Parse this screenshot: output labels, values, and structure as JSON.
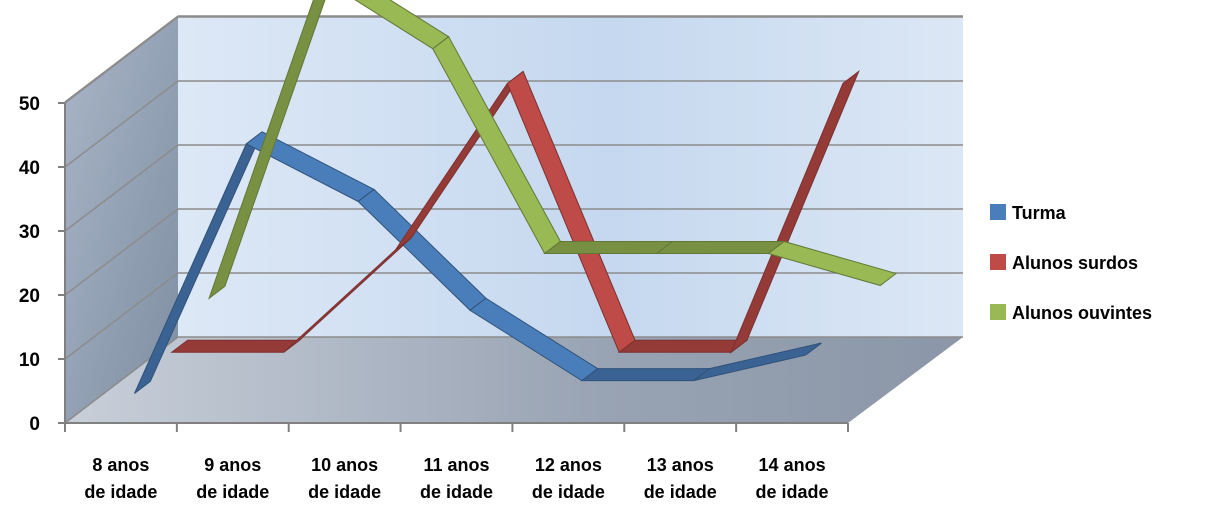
{
  "chart_data": {
    "type": "line",
    "title": "",
    "xlabel": "",
    "ylabel": "",
    "ylim": [
      0,
      50
    ],
    "y_ticks": [
      "0",
      "10",
      "20",
      "30",
      "40",
      "50"
    ],
    "categories": [
      [
        "8 anos",
        "de idade"
      ],
      [
        "9 anos",
        "de idade"
      ],
      [
        "10 anos",
        "de idade"
      ],
      [
        "11 anos",
        "de idade"
      ],
      [
        "12 anos",
        "de idade"
      ],
      [
        "13 anos",
        "de idade"
      ],
      [
        "14 anos",
        "de idade"
      ]
    ],
    "grid": true,
    "legend_position": "right",
    "series": [
      {
        "name": "Turma",
        "color": "#4a7ebb",
        "values": [
          3,
          42,
          33,
          16,
          5,
          5,
          9
        ]
      },
      {
        "name": "Alunos surdos",
        "color": "#be4b48",
        "values": [
          5,
          5,
          21,
          47,
          5,
          5,
          47
        ]
      },
      {
        "name": "Alunos ouvintes",
        "color": "#98b954",
        "values": [
          9,
          59,
          48,
          16,
          16,
          16,
          11
        ]
      }
    ]
  }
}
